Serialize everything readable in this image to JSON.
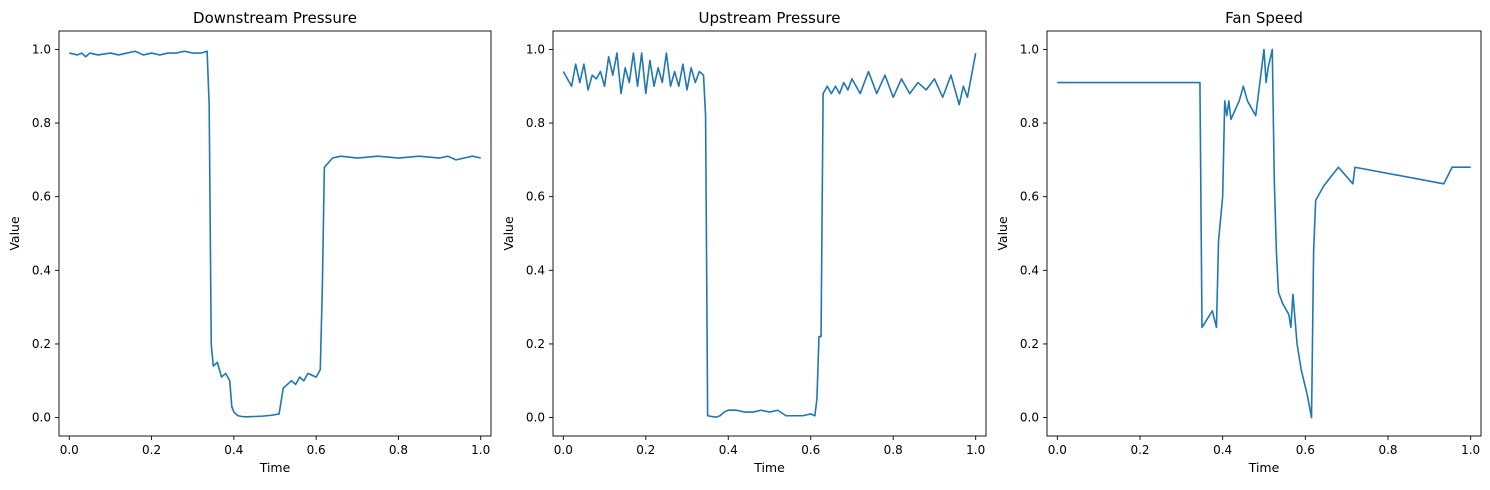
{
  "chart_data": [
    {
      "type": "line",
      "title": "Downstream Pressure",
      "xlabel": "Time",
      "ylabel": "Value",
      "xlim": [
        -0.025,
        1.025
      ],
      "ylim": [
        -0.05,
        1.05
      ],
      "xticks": [
        0.0,
        0.2,
        0.4,
        0.6,
        0.8,
        1.0
      ],
      "yticks": [
        0.0,
        0.2,
        0.4,
        0.6,
        0.8,
        1.0
      ],
      "xticklabels": [
        "0.0",
        "0.2",
        "0.4",
        "0.6",
        "0.8",
        "1.0"
      ],
      "yticklabels": [
        "0.0",
        "0.2",
        "0.4",
        "0.6",
        "0.8",
        "1.0"
      ],
      "grid": false,
      "color": "#1f77b4",
      "series": [
        {
          "x": [
            0.0,
            0.02,
            0.03,
            0.04,
            0.05,
            0.07,
            0.1,
            0.12,
            0.14,
            0.16,
            0.18,
            0.2,
            0.22,
            0.24,
            0.26,
            0.28,
            0.3,
            0.32,
            0.335,
            0.34,
            0.345,
            0.35,
            0.36,
            0.37,
            0.38,
            0.39,
            0.395,
            0.4,
            0.41,
            0.42,
            0.43,
            0.45,
            0.47,
            0.49,
            0.51,
            0.52,
            0.53,
            0.54,
            0.55,
            0.56,
            0.57,
            0.58,
            0.6,
            0.61,
            0.615,
            0.62,
            0.64,
            0.66,
            0.7,
            0.75,
            0.8,
            0.85,
            0.9,
            0.92,
            0.94,
            0.96,
            0.98,
            1.0
          ],
          "y": [
            0.99,
            0.985,
            0.99,
            0.98,
            0.99,
            0.985,
            0.99,
            0.985,
            0.99,
            0.995,
            0.985,
            0.99,
            0.985,
            0.99,
            0.99,
            0.995,
            0.99,
            0.99,
            0.995,
            0.85,
            0.2,
            0.14,
            0.15,
            0.11,
            0.12,
            0.1,
            0.03,
            0.015,
            0.005,
            0.003,
            0.002,
            0.003,
            0.004,
            0.006,
            0.01,
            0.08,
            0.09,
            0.1,
            0.09,
            0.11,
            0.1,
            0.12,
            0.11,
            0.13,
            0.35,
            0.68,
            0.705,
            0.71,
            0.705,
            0.71,
            0.705,
            0.71,
            0.705,
            0.71,
            0.7,
            0.705,
            0.71,
            0.705
          ]
        }
      ]
    },
    {
      "type": "line",
      "title": "Upstream Pressure",
      "xlabel": "Time",
      "ylabel": "Value",
      "xlim": [
        -0.025,
        1.025
      ],
      "ylim": [
        -0.05,
        1.05
      ],
      "xticks": [
        0.0,
        0.2,
        0.4,
        0.6,
        0.8,
        1.0
      ],
      "yticks": [
        0.0,
        0.2,
        0.4,
        0.6,
        0.8,
        1.0
      ],
      "xticklabels": [
        "0.0",
        "0.2",
        "0.4",
        "0.6",
        "0.8",
        "1.0"
      ],
      "yticklabels": [
        "0.0",
        "0.2",
        "0.4",
        "0.6",
        "0.8",
        "1.0"
      ],
      "grid": false,
      "color": "#1f77b4",
      "series": [
        {
          "x": [
            0.0,
            0.01,
            0.02,
            0.03,
            0.04,
            0.05,
            0.06,
            0.07,
            0.08,
            0.09,
            0.1,
            0.11,
            0.12,
            0.13,
            0.14,
            0.15,
            0.16,
            0.17,
            0.18,
            0.19,
            0.2,
            0.21,
            0.22,
            0.23,
            0.24,
            0.25,
            0.26,
            0.27,
            0.28,
            0.29,
            0.3,
            0.31,
            0.32,
            0.33,
            0.34,
            0.345,
            0.35,
            0.36,
            0.37,
            0.38,
            0.39,
            0.4,
            0.42,
            0.44,
            0.46,
            0.48,
            0.5,
            0.52,
            0.54,
            0.56,
            0.58,
            0.6,
            0.61,
            0.615,
            0.62,
            0.625,
            0.63,
            0.64,
            0.65,
            0.66,
            0.67,
            0.68,
            0.69,
            0.7,
            0.72,
            0.74,
            0.76,
            0.78,
            0.8,
            0.82,
            0.84,
            0.86,
            0.88,
            0.9,
            0.92,
            0.94,
            0.96,
            0.97,
            0.98,
            0.99,
            1.0
          ],
          "y": [
            0.94,
            0.92,
            0.9,
            0.96,
            0.91,
            0.96,
            0.89,
            0.93,
            0.92,
            0.94,
            0.9,
            0.98,
            0.93,
            0.99,
            0.88,
            0.95,
            0.91,
            0.99,
            0.9,
            0.99,
            0.88,
            0.97,
            0.9,
            0.95,
            0.91,
            0.99,
            0.9,
            0.94,
            0.9,
            0.96,
            0.89,
            0.95,
            0.91,
            0.94,
            0.93,
            0.82,
            0.005,
            0.003,
            0.001,
            0.005,
            0.015,
            0.02,
            0.02,
            0.015,
            0.015,
            0.02,
            0.015,
            0.02,
            0.005,
            0.005,
            0.005,
            0.01,
            0.005,
            0.05,
            0.22,
            0.22,
            0.88,
            0.9,
            0.88,
            0.9,
            0.88,
            0.91,
            0.89,
            0.92,
            0.88,
            0.94,
            0.88,
            0.93,
            0.87,
            0.92,
            0.88,
            0.91,
            0.89,
            0.92,
            0.87,
            0.93,
            0.85,
            0.9,
            0.87,
            0.93,
            0.99
          ]
        }
      ]
    },
    {
      "type": "line",
      "title": "Fan Speed",
      "xlabel": "Time",
      "ylabel": "Value",
      "xlim": [
        -0.025,
        1.025
      ],
      "ylim": [
        -0.05,
        1.05
      ],
      "xticks": [
        0.0,
        0.2,
        0.4,
        0.6,
        0.8,
        1.0
      ],
      "yticks": [
        0.0,
        0.2,
        0.4,
        0.6,
        0.8,
        1.0
      ],
      "xticklabels": [
        "0.0",
        "0.2",
        "0.4",
        "0.6",
        "0.8",
        "1.0"
      ],
      "yticklabels": [
        "0.0",
        "0.2",
        "0.4",
        "0.6",
        "0.8",
        "1.0"
      ],
      "grid": false,
      "color": "#1f77b4",
      "series": [
        {
          "x": [
            0.0,
            0.345,
            0.35,
            0.375,
            0.385,
            0.39,
            0.4,
            0.405,
            0.41,
            0.415,
            0.42,
            0.44,
            0.45,
            0.46,
            0.48,
            0.5,
            0.505,
            0.51,
            0.52,
            0.525,
            0.53,
            0.535,
            0.545,
            0.56,
            0.565,
            0.57,
            0.58,
            0.59,
            0.605,
            0.615,
            0.62,
            0.625,
            0.645,
            0.68,
            0.715,
            0.72,
            0.935,
            0.955,
            1.0
          ],
          "y": [
            0.91,
            0.91,
            0.245,
            0.29,
            0.245,
            0.48,
            0.6,
            0.86,
            0.82,
            0.86,
            0.81,
            0.86,
            0.9,
            0.86,
            0.82,
            1.0,
            0.91,
            0.95,
            1.0,
            0.64,
            0.45,
            0.34,
            0.31,
            0.28,
            0.245,
            0.335,
            0.2,
            0.13,
            0.06,
            0.0,
            0.45,
            0.59,
            0.63,
            0.68,
            0.635,
            0.68,
            0.635,
            0.68,
            0.68
          ]
        }
      ]
    }
  ]
}
